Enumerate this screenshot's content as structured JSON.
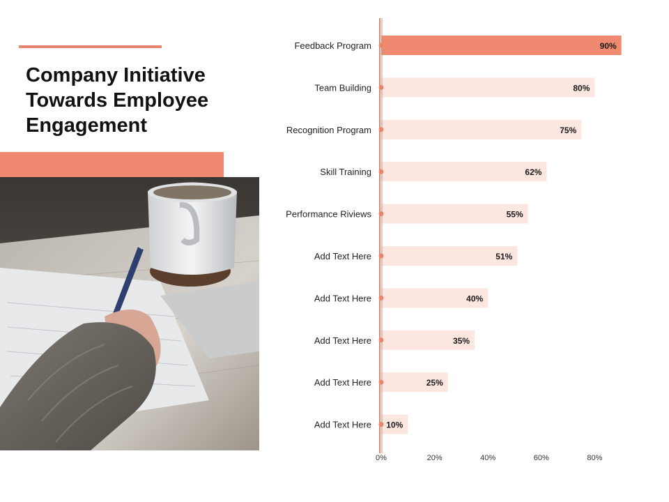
{
  "slide": {
    "title_lines": [
      "Company Initiative",
      "Towards Employee",
      "Engagement"
    ]
  },
  "photo": {
    "depicts": "photo-icon"
  },
  "colors": {
    "accent": "#ef8a71",
    "bar_highlight": "#ef8a71",
    "bar_light": "#fce6e0",
    "axis_line": "#d98873",
    "marker": "#ee8468"
  },
  "chart_data": {
    "type": "bar",
    "orientation": "horizontal",
    "categories": [
      "Feedback Program",
      "Team Building",
      "Recognition Program",
      "Skill Training",
      "Performance Riviews",
      "Add Text Here",
      "Add Text Here",
      "Add Text Here",
      "Add Text Here",
      "Add Text Here"
    ],
    "values": [
      90,
      80,
      75,
      62,
      55,
      51,
      40,
      35,
      25,
      10
    ],
    "value_labels": [
      "90%",
      "80%",
      "75%",
      "62%",
      "55%",
      "51%",
      "40%",
      "35%",
      "25%",
      "10%"
    ],
    "highlight_index": 0,
    "x_ticks": [
      0,
      20,
      40,
      60,
      80
    ],
    "x_tick_labels": [
      "0%",
      "20%",
      "40%",
      "60%",
      "80%"
    ],
    "xlim": [
      0,
      100
    ],
    "grid": false,
    "legend": "none"
  }
}
